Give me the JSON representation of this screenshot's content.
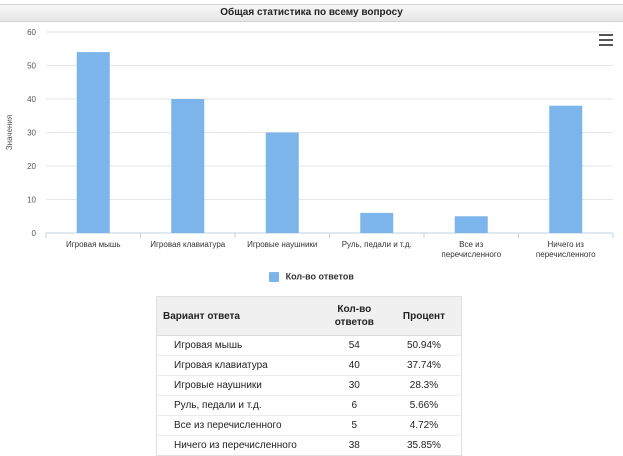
{
  "header": {
    "title": "Общая статистика по всему вопросу"
  },
  "chart_data": {
    "type": "bar",
    "categories": [
      "Игровая мышь",
      "Игровая клавиатура",
      "Игровые наушники",
      "Руль, педали и т.д.",
      "Все из\nперечисленного",
      "Ничего из\nперечисленного"
    ],
    "series": [
      {
        "name": "Кол-во ответов",
        "values": [
          54,
          40,
          30,
          6,
          5,
          38
        ]
      }
    ],
    "title": "",
    "xlabel": "",
    "ylabel": "Значения",
    "ylim": [
      0,
      60
    ],
    "yticks": [
      0,
      10,
      20,
      30,
      40,
      50,
      60
    ],
    "grid": true,
    "legend": "bottom-center",
    "colors": {
      "bar": "#7cb5ec"
    }
  },
  "legend": {
    "label": "Кол-во ответов"
  },
  "table": {
    "headers": {
      "name": "Вариант ответа",
      "count": "Кол-во ответов",
      "percent": "Процент"
    },
    "rows": [
      {
        "name": "Игровая мышь",
        "count": "54",
        "percent": "50.94%"
      },
      {
        "name": "Игровая клавиатура",
        "count": "40",
        "percent": "37.74%"
      },
      {
        "name": "Игровые наушники",
        "count": "30",
        "percent": "28.3%"
      },
      {
        "name": "Руль, педали и т.д.",
        "count": "6",
        "percent": "5.66%"
      },
      {
        "name": "Все из перечисленного",
        "count": "5",
        "percent": "4.72%"
      },
      {
        "name": "Ничего из перечисленного",
        "count": "38",
        "percent": "35.85%"
      }
    ]
  }
}
